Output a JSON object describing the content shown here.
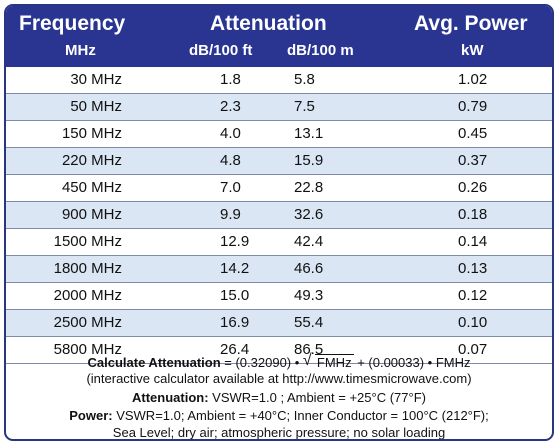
{
  "header": {
    "frequency_title": "Frequency",
    "frequency_unit": "MHz",
    "attenuation_title": "Attenuation",
    "att_ft_unit": "dB/100 ft",
    "att_m_unit": "dB/100 m",
    "power_title": "Avg. Power",
    "power_unit": "kW"
  },
  "colors": {
    "header_bg": "#2a3592",
    "alt_row_bg": "#dbe6f4",
    "border": "#2a3580"
  },
  "rows": [
    {
      "freq": "30 MHz",
      "db_ft": "1.8",
      "db_m": "5.8",
      "kw": "1.02"
    },
    {
      "freq": "50 MHz",
      "db_ft": "2.3",
      "db_m": "7.5",
      "kw": "0.79"
    },
    {
      "freq": "150 MHz",
      "db_ft": "4.0",
      "db_m": "13.1",
      "kw": "0.45"
    },
    {
      "freq": "220 MHz",
      "db_ft": "4.8",
      "db_m": "15.9",
      "kw": "0.37"
    },
    {
      "freq": "450 MHz",
      "db_ft": "7.0",
      "db_m": "22.8",
      "kw": "0.26"
    },
    {
      "freq": "900 MHz",
      "db_ft": "9.9",
      "db_m": "32.6",
      "kw": "0.18"
    },
    {
      "freq": "1500 MHz",
      "db_ft": "12.9",
      "db_m": "42.4",
      "kw": "0.14"
    },
    {
      "freq": "1800 MHz",
      "db_ft": "14.2",
      "db_m": "46.6",
      "kw": "0.13"
    },
    {
      "freq": "2000 MHz",
      "db_ft": "15.0",
      "db_m": "49.3",
      "kw": "0.12"
    },
    {
      "freq": "2500 MHz",
      "db_ft": "16.9",
      "db_m": "55.4",
      "kw": "0.10"
    },
    {
      "freq": "5800 MHz",
      "db_ft": "26.4",
      "db_m": "86.5",
      "kw": "0.07"
    }
  ],
  "footer": {
    "calc_label": "Calculate Attenuation",
    "calc_eq_start": " = (0.32090) • ",
    "calc_sqrt_term": "FMHz",
    "calc_eq_end": " + (0.00033) • FMHz",
    "calc_note": "(interactive calculator available at http://www.timesmicrowave.com)",
    "att_label": "Attenuation:",
    "att_cond": " VSWR=1.0 ; Ambient = +25°C (77°F)",
    "power_label": "Power:",
    "power_cond": " VSWR=1.0; Ambient = +40°C; Inner Conductor = 100°C (212°F);",
    "power_cond2": "Sea Level; dry air; atmospheric pressure; no solar loading"
  }
}
